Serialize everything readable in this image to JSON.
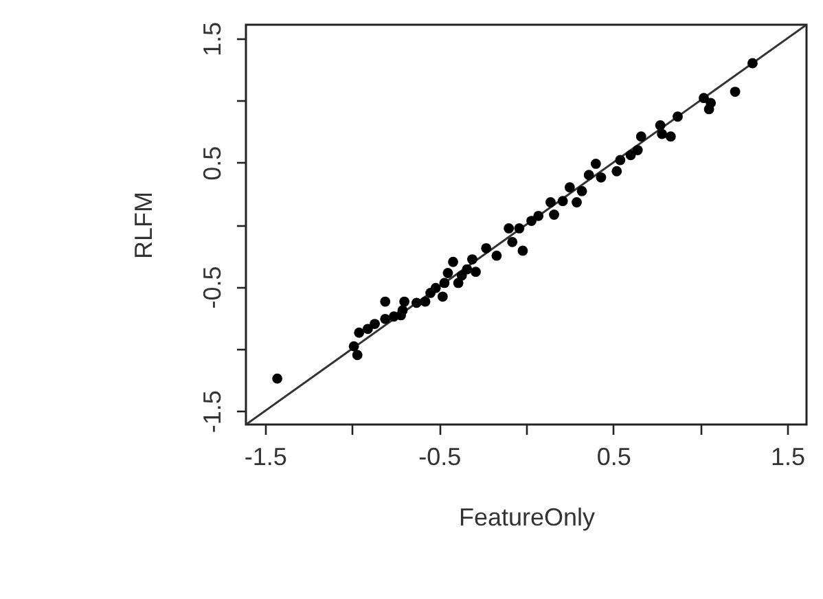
{
  "chart_data": {
    "type": "scatter",
    "xlabel": "FeatureOnly",
    "ylabel": "RLFM",
    "xlim": [
      -1.61,
      1.61
    ],
    "ylim": [
      -1.61,
      1.61
    ],
    "xticks": [
      -1.5,
      {
        "value": -1,
        "label": null
      },
      -0.5,
      {
        "value": 0,
        "label": null
      },
      0.5,
      {
        "value": 1,
        "label": null
      },
      1.5
    ],
    "yticks": [
      -1.5,
      {
        "value": -1,
        "label": null
      },
      -0.5,
      {
        "value": 0,
        "label": null
      },
      0.5,
      {
        "value": 1,
        "label": null
      },
      1.5
    ],
    "series": [
      {
        "type": "line",
        "color": "#333333",
        "x": [
          -1.61,
          1.61
        ],
        "values": [
          -1.61,
          1.61
        ]
      },
      {
        "color": "#000000",
        "marker": "circle",
        "x": [
          -1.43,
          -0.99,
          -0.97,
          -0.96,
          -0.91,
          -0.87,
          -0.81,
          -0.81,
          -0.76,
          -0.72,
          -0.7,
          -0.71,
          -0.63,
          -0.58,
          -0.55,
          -0.52,
          -0.48,
          -0.47,
          -0.45,
          -0.42,
          -0.39,
          -0.37,
          -0.34,
          -0.31,
          -0.29,
          -0.23,
          -0.17,
          -0.1,
          -0.08,
          -0.02,
          -0.04,
          0.03,
          0.07,
          0.14,
          0.16,
          0.21,
          0.25,
          0.29,
          0.32,
          0.36,
          0.4,
          0.43,
          0.52,
          0.54,
          0.6,
          0.64,
          0.66,
          0.77,
          0.78,
          0.83,
          0.87,
          1.02,
          1.05,
          1.06,
          1.2,
          1.3
        ],
        "values": [
          -1.24,
          -0.98,
          -1.05,
          -0.87,
          -0.84,
          -0.8,
          -0.62,
          -0.76,
          -0.74,
          -0.73,
          -0.62,
          -0.69,
          -0.63,
          -0.62,
          -0.55,
          -0.51,
          -0.58,
          -0.47,
          -0.39,
          -0.3,
          -0.47,
          -0.41,
          -0.36,
          -0.28,
          -0.38,
          -0.19,
          -0.25,
          -0.03,
          -0.14,
          -0.21,
          -0.03,
          0.03,
          0.07,
          0.18,
          0.08,
          0.19,
          0.3,
          0.18,
          0.27,
          0.4,
          0.49,
          0.38,
          0.43,
          0.52,
          0.56,
          0.6,
          0.71,
          0.8,
          0.73,
          0.71,
          0.87,
          1.02,
          0.93,
          0.98,
          1.07,
          1.3
        ]
      }
    ]
  }
}
